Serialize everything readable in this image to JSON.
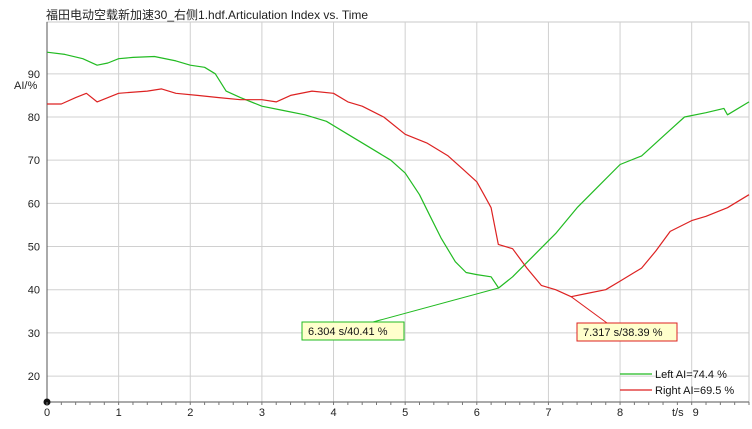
{
  "chart_data": {
    "type": "line",
    "title": "福田电动空载新加速30_右侧1.hdf.Articulation Index vs. Time",
    "xlabel": "t/s",
    "ylabel": "AI/%",
    "xlim": [
      0,
      9.8
    ],
    "ylim": [
      14,
      102
    ],
    "xticks": [
      0,
      1,
      2,
      3,
      4,
      5,
      6,
      7,
      8,
      9
    ],
    "yticks": [
      20,
      30,
      40,
      50,
      60,
      70,
      80,
      90
    ],
    "grid": true,
    "legend_position": "bottom-right",
    "series": [
      {
        "name": "Left AI=74.4 %",
        "color": "#22bb22",
        "x": [
          0,
          0.25,
          0.5,
          0.7,
          0.85,
          1.0,
          1.2,
          1.5,
          1.8,
          2.0,
          2.2,
          2.35,
          2.5,
          2.7,
          3.0,
          3.3,
          3.6,
          3.9,
          4.2,
          4.5,
          4.8,
          5.0,
          5.2,
          5.35,
          5.5,
          5.7,
          5.85,
          6.0,
          6.2,
          6.304,
          6.5,
          6.8,
          7.1,
          7.4,
          7.7,
          8.0,
          8.3,
          8.6,
          8.9,
          9.2,
          9.45,
          9.5,
          9.8
        ],
        "y": [
          95,
          94.5,
          93.5,
          92,
          92.5,
          93.5,
          93.8,
          94,
          93,
          92,
          91.5,
          90,
          86,
          84.5,
          82.5,
          81.5,
          80.5,
          79,
          76,
          73,
          70,
          67,
          62,
          57,
          52,
          46.5,
          44,
          43.5,
          43,
          40.41,
          43,
          48,
          53,
          59,
          64,
          69,
          71,
          75.5,
          80,
          81,
          82,
          80.5,
          83.5
        ]
      },
      {
        "name": "Right AI=69.5 %",
        "color": "#dd2222",
        "x": [
          0,
          0.2,
          0.4,
          0.55,
          0.7,
          1.0,
          1.4,
          1.6,
          1.8,
          2.1,
          2.4,
          2.7,
          3.0,
          3.2,
          3.4,
          3.7,
          4.0,
          4.2,
          4.4,
          4.7,
          5.0,
          5.3,
          5.6,
          5.8,
          6.0,
          6.1,
          6.2,
          6.3,
          6.5,
          6.7,
          6.9,
          7.1,
          7.317,
          7.5,
          7.8,
          8.0,
          8.3,
          8.5,
          8.7,
          9.0,
          9.2,
          9.5,
          9.8
        ],
        "y": [
          83,
          83,
          84.5,
          85.5,
          83.5,
          85.5,
          86,
          86.5,
          85.5,
          85,
          84.5,
          84,
          84,
          83.5,
          85,
          86,
          85.5,
          83.5,
          82.5,
          80,
          76,
          74,
          71,
          68,
          65,
          62,
          59,
          50.5,
          49.5,
          45,
          41,
          40,
          38.39,
          39,
          40,
          42,
          45,
          49,
          53.5,
          56,
          57,
          59,
          62
        ]
      }
    ],
    "annotations": [
      {
        "label": "6.304 s/40.41 %",
        "x": 6.304,
        "y": 40.41,
        "color": "#22bb22"
      },
      {
        "label": "7.317 s/38.39 %",
        "x": 7.317,
        "y": 38.39,
        "color": "#dd2222"
      }
    ]
  }
}
